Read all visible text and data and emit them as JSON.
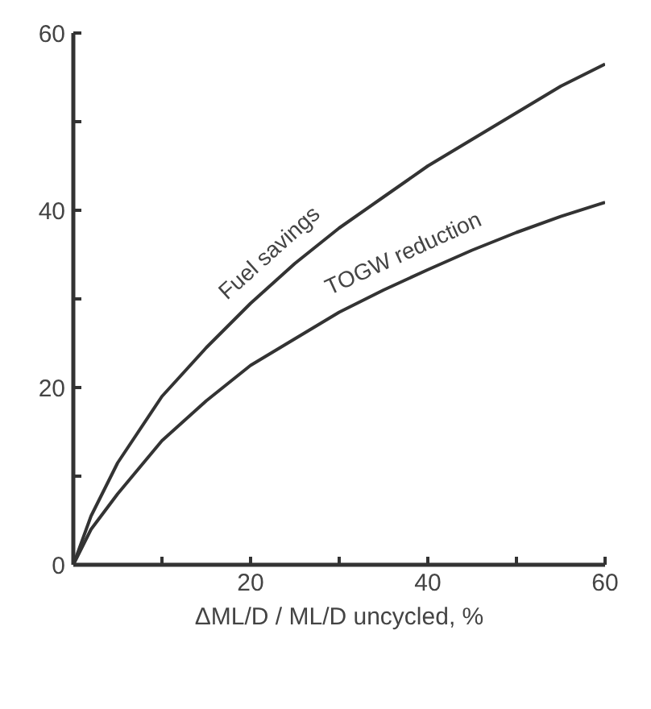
{
  "chart_data": {
    "type": "line",
    "xlabel": "ΔML/D / ML/D uncycled, %",
    "xlim": [
      0,
      60
    ],
    "ylim": [
      0,
      60
    ],
    "xticks": [
      {
        "value": 10,
        "label": null
      },
      20,
      {
        "value": 30,
        "label": null
      },
      40,
      {
        "value": 50,
        "label": null
      },
      60
    ],
    "yticks": [
      0,
      {
        "value": 10,
        "label": null
      },
      20,
      {
        "value": 30,
        "label": null
      },
      40,
      {
        "value": 50,
        "label": null
      },
      60
    ],
    "grid": false,
    "legend": false,
    "marker": "none",
    "line_style": "solid",
    "series": [
      {
        "name": "Fuel savings",
        "color": "#333333",
        "x": [
          0,
          2,
          5,
          10,
          15,
          20,
          25,
          30,
          35,
          40,
          45,
          50,
          55,
          60
        ],
        "values": [
          0,
          5.5,
          11.5,
          19,
          24.5,
          29.5,
          34,
          38,
          41.5,
          45,
          48,
          51,
          54,
          56.5
        ]
      },
      {
        "name": "TOGW reduction",
        "color": "#333333",
        "x": [
          0,
          2,
          5,
          10,
          15,
          20,
          25,
          30,
          35,
          40,
          45,
          50,
          55,
          60
        ],
        "values": [
          0,
          4,
          8,
          14,
          18.5,
          22.5,
          25.5,
          28.5,
          31,
          33.3,
          35.5,
          37.5,
          39.3,
          40.9
        ]
      }
    ]
  }
}
